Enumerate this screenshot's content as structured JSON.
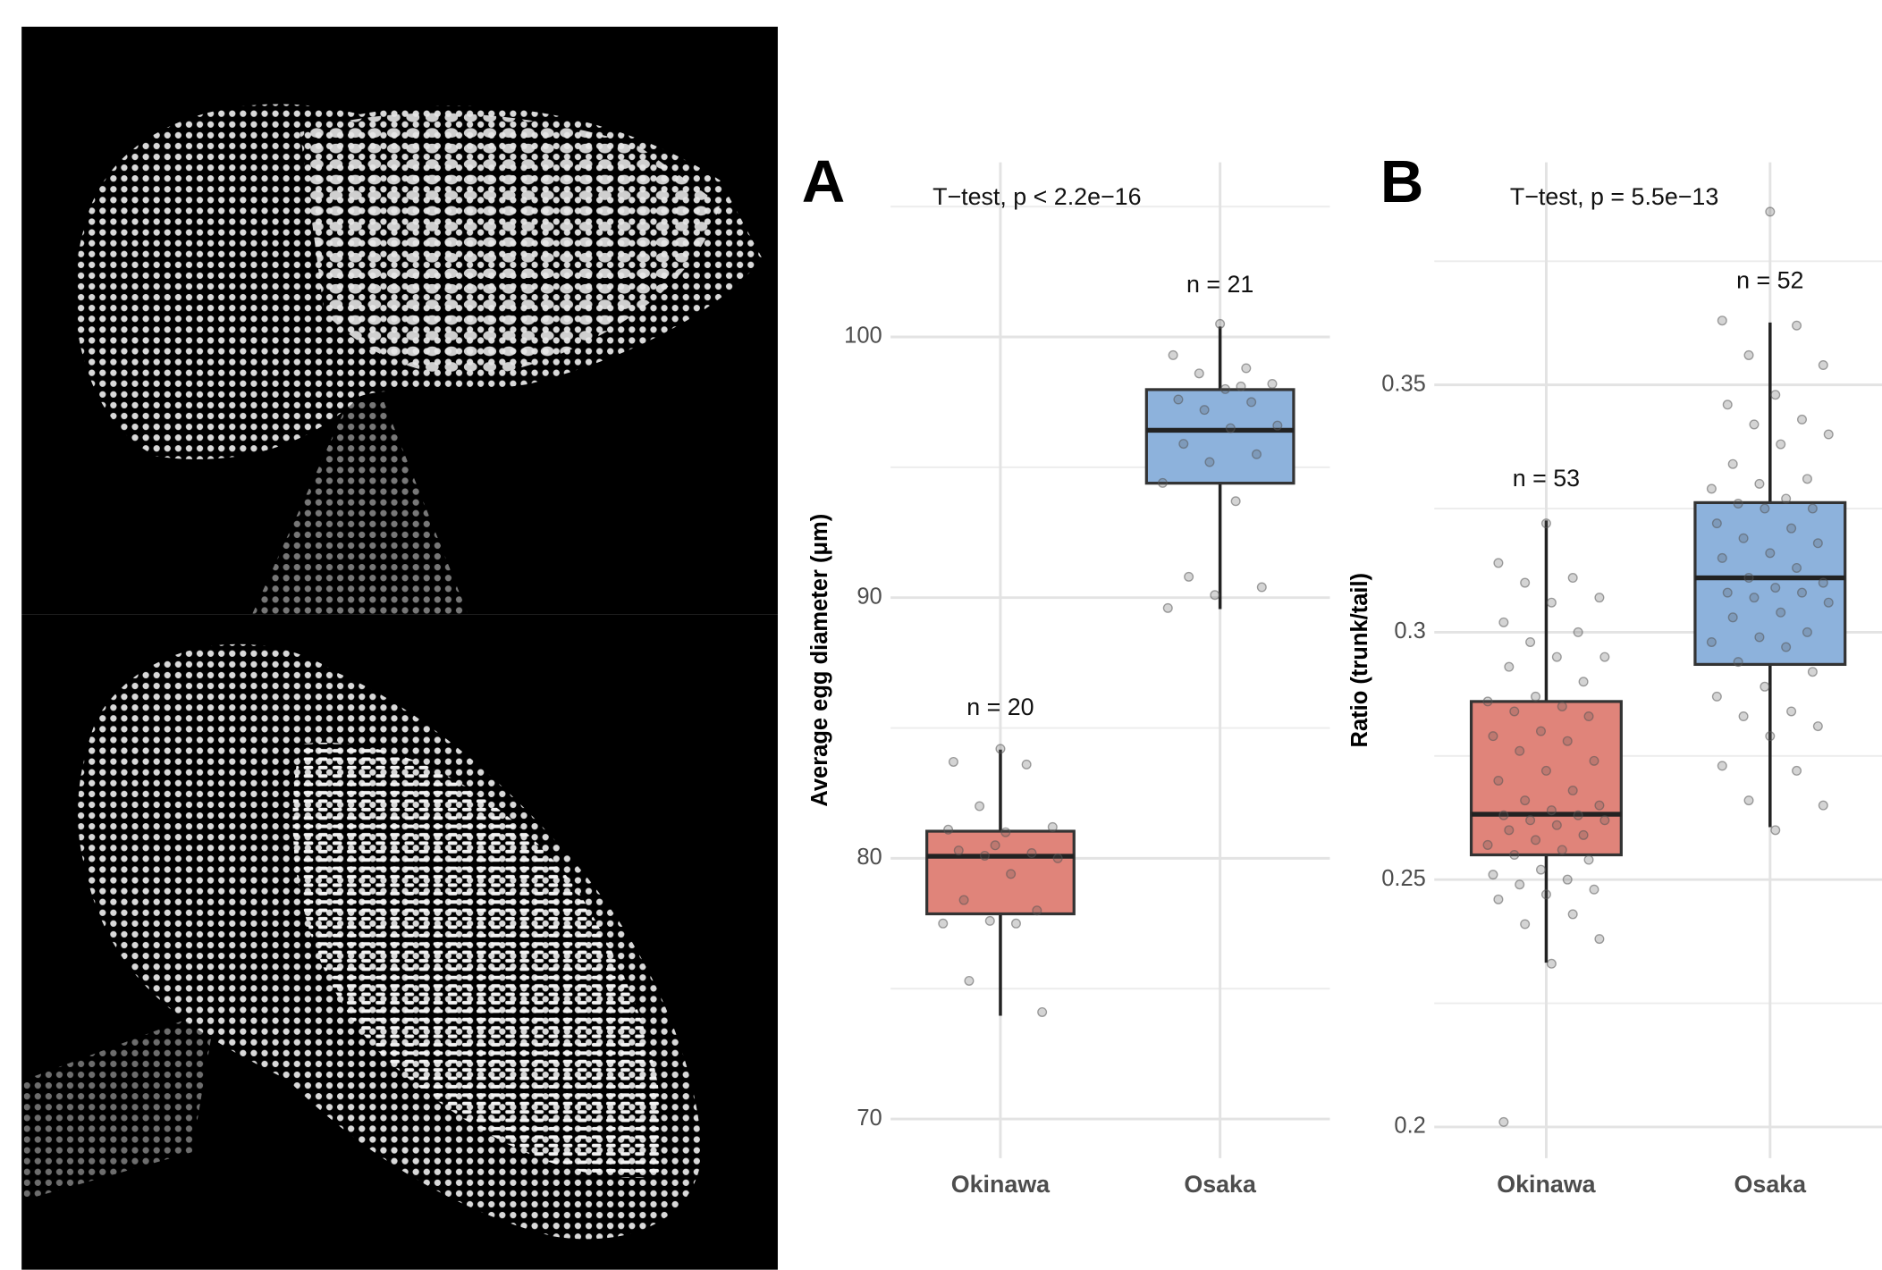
{
  "chart_data": [
    {
      "type": "box",
      "panel_label": "A",
      "title": "T−test, p < 2.2e−16",
      "y_label": "Average egg diameter (μm)",
      "categories": [
        "Okinawa",
        "Osaka"
      ],
      "boxes": [
        {
          "color": "#e0847a",
          "whisker_low": 73.96,
          "q1": 77.87,
          "median": 80.08,
          "q3": 81.04,
          "whisker_high": 84.17,
          "n_label": "n = 20",
          "points": [
            84.2,
            83.7,
            83.6,
            82.0,
            81.2,
            81.0,
            80.3,
            80.2,
            80.1,
            80.0,
            79.4,
            78.4,
            78.0,
            77.6,
            77.5,
            77.5,
            75.3,
            74.1,
            80.5,
            81.1
          ]
        },
        {
          "color": "#8db2dc",
          "whisker_low": 89.56,
          "q1": 94.39,
          "median": 96.42,
          "q3": 97.98,
          "whisker_high": 100.4,
          "n_label": "n = 21",
          "points": [
            100.5,
            99.3,
            98.8,
            98.6,
            98.2,
            98.0,
            97.6,
            97.5,
            97.2,
            96.6,
            96.5,
            95.9,
            95.5,
            95.2,
            94.4,
            93.7,
            90.8,
            90.4,
            90.1,
            89.6,
            98.1
          ]
        }
      ],
      "point_color": "#555555",
      "ylim": [
        68.5,
        106.7
      ],
      "yticks": [
        70,
        80,
        90,
        100
      ],
      "minor_yticks": [
        75,
        85,
        95,
        105
      ],
      "grid": true
    },
    {
      "type": "box",
      "panel_label": "B",
      "title": "T−test, p = 5.5e−13",
      "y_label": "Ratio (trunk/tail)",
      "categories": [
        "Okinawa",
        "Osaka"
      ],
      "boxes": [
        {
          "color": "#e0847a",
          "whisker_low": 0.2332,
          "q1": 0.255,
          "median": 0.2632,
          "q3": 0.286,
          "whisker_high": 0.3226,
          "n_label": "n = 53",
          "points": [
            0.322,
            0.314,
            0.311,
            0.31,
            0.307,
            0.306,
            0.302,
            0.3,
            0.298,
            0.295,
            0.295,
            0.293,
            0.29,
            0.287,
            0.286,
            0.285,
            0.284,
            0.283,
            0.28,
            0.279,
            0.278,
            0.276,
            0.274,
            0.272,
            0.27,
            0.268,
            0.266,
            0.265,
            0.264,
            0.263,
            0.263,
            0.262,
            0.262,
            0.261,
            0.26,
            0.259,
            0.258,
            0.257,
            0.256,
            0.255,
            0.254,
            0.252,
            0.251,
            0.25,
            0.249,
            0.248,
            0.247,
            0.246,
            0.243,
            0.241,
            0.238,
            0.233,
            0.201
          ]
        },
        {
          "color": "#8db2dc",
          "whisker_low": 0.2606,
          "q1": 0.2935,
          "median": 0.311,
          "q3": 0.3262,
          "whisker_high": 0.3626,
          "n_label": "n = 52",
          "points": [
            0.385,
            0.363,
            0.362,
            0.356,
            0.354,
            0.348,
            0.346,
            0.343,
            0.342,
            0.34,
            0.338,
            0.334,
            0.331,
            0.33,
            0.329,
            0.327,
            0.326,
            0.325,
            0.325,
            0.322,
            0.321,
            0.319,
            0.318,
            0.316,
            0.315,
            0.313,
            0.311,
            0.31,
            0.309,
            0.308,
            0.308,
            0.307,
            0.306,
            0.304,
            0.303,
            0.3,
            0.299,
            0.298,
            0.297,
            0.294,
            0.292,
            0.289,
            0.287,
            0.284,
            0.283,
            0.281,
            0.279,
            0.273,
            0.272,
            0.266,
            0.265,
            0.26
          ]
        }
      ],
      "point_color": "#555555",
      "ylim": [
        0.1937,
        0.395
      ],
      "yticks": [
        0.2,
        0.25,
        0.3,
        0.35
      ],
      "minor_yticks": [
        0.225,
        0.275,
        0.325,
        0.375
      ],
      "grid": true
    }
  ]
}
